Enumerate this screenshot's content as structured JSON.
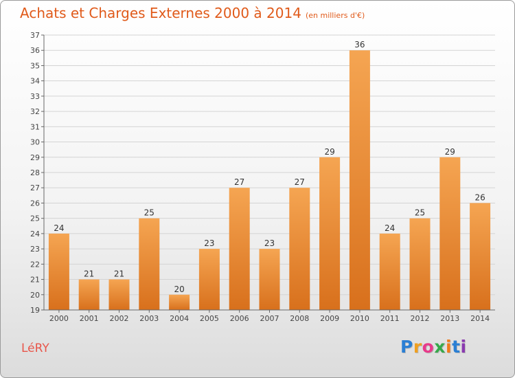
{
  "header": {
    "title": "Achats et Charges Externes 2000 à 2014",
    "unit": "(en milliers d'€)"
  },
  "footer": {
    "commune": "LéRY",
    "logo": {
      "letters": [
        "P",
        "r",
        "o",
        "x",
        "i",
        "t",
        "i"
      ],
      "colors": [
        "#2a7fd4",
        "#f0a020",
        "#e83a8a",
        "#37a84a",
        "#f07a1a",
        "#2a7fd4",
        "#8a3ab0"
      ]
    }
  },
  "chart_data": {
    "type": "bar",
    "title": "Achats et Charges Externes 2000 à 2014",
    "subtitle": "(en milliers d'€)",
    "categories": [
      "2000",
      "2001",
      "2002",
      "2003",
      "2004",
      "2005",
      "2006",
      "2007",
      "2008",
      "2009",
      "2010",
      "2011",
      "2012",
      "2013",
      "2014"
    ],
    "values": [
      24,
      21,
      21,
      25,
      20,
      23,
      27,
      23,
      27,
      29,
      36,
      24,
      25,
      29,
      26
    ],
    "ylim": [
      19,
      37
    ],
    "yticks": [
      19,
      20,
      21,
      22,
      23,
      24,
      25,
      26,
      27,
      28,
      29,
      30,
      31,
      32,
      33,
      34,
      35,
      36,
      37
    ],
    "grid": true,
    "bar_color_top": "#f5a552",
    "bar_color_bottom": "#d8701c"
  }
}
